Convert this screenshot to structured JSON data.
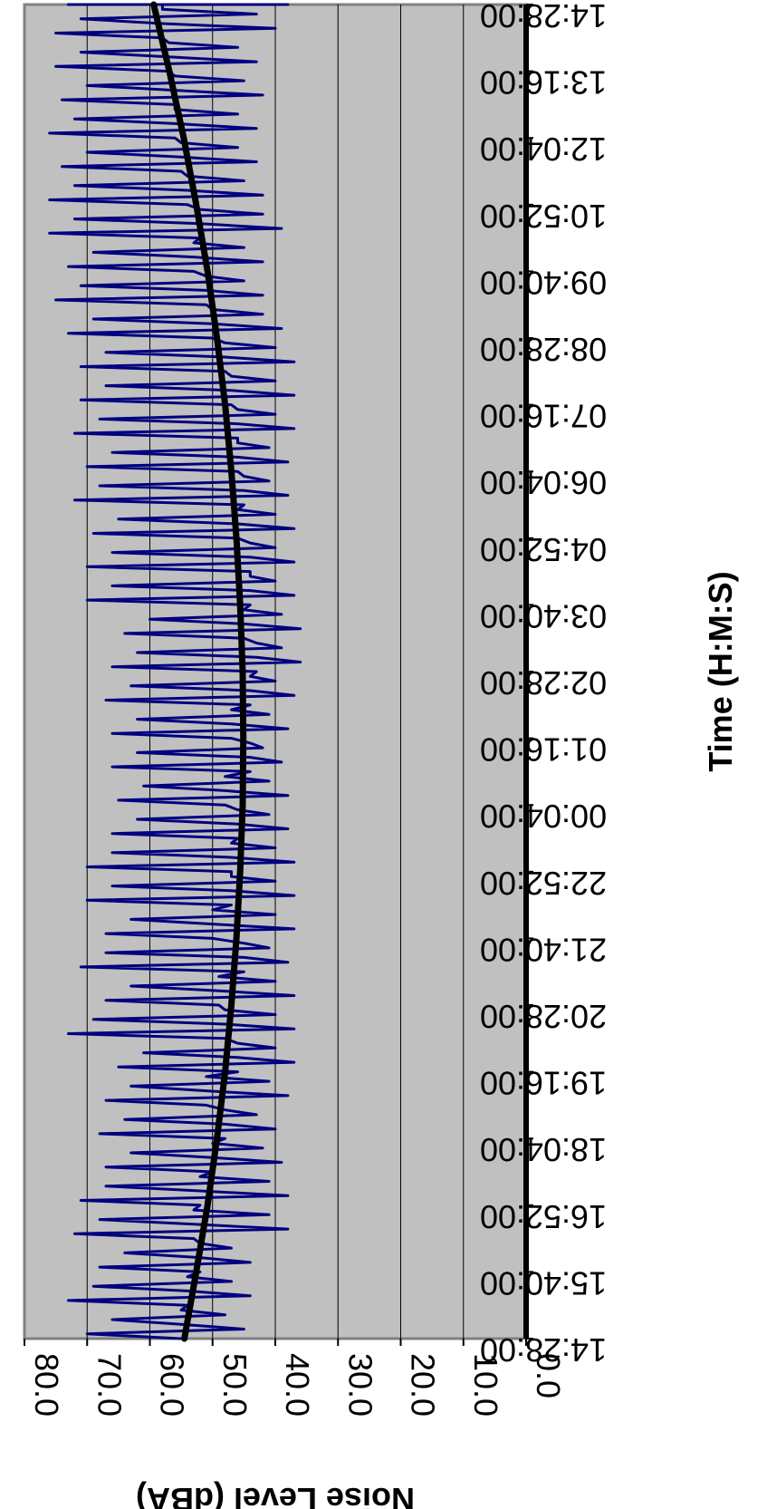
{
  "chart_data": {
    "type": "line",
    "orientation": "rotated-clockwise-90",
    "title": "",
    "xlabel": "Time (H:M:S)",
    "ylabel": "Noise Level (dBA)",
    "x_ticks": [
      "14:28:00",
      "15:40:00",
      "16:52:00",
      "18:04:00",
      "19:16:00",
      "20:28:00",
      "21:40:00",
      "22:52:00",
      "00:04:00",
      "01:16:00",
      "02:28:00",
      "03:40:00",
      "04:52:00",
      "06:04:00",
      "07:16:00",
      "08:28:00",
      "09:40:00",
      "10:52:00",
      "12:04:00",
      "13:16:00",
      "14:28:00"
    ],
    "y_ticks": [
      "0.0",
      "10.0",
      "20.0",
      "30.0",
      "40.0",
      "50.0",
      "60.0",
      "70.0",
      "80.0"
    ],
    "ylim": [
      0,
      80
    ],
    "grid": true,
    "legend": "none",
    "series": [
      {
        "kind": "measured",
        "color": "#000080",
        "x": [
          "14:28:00",
          "15:04:00",
          "15:40:00",
          "16:16:00",
          "16:52:00",
          "17:28:00",
          "18:04:00",
          "18:40:00",
          "19:16:00",
          "19:52:00",
          "20:28:00",
          "21:04:00",
          "21:40:00",
          "22:16:00",
          "22:52:00",
          "23:28:00",
          "00:04:00",
          "00:40:00",
          "01:16:00",
          "01:52:00",
          "02:28:00",
          "03:04:00",
          "03:40:00",
          "04:16:00",
          "04:52:00",
          "05:28:00",
          "06:04:00",
          "06:40:00",
          "07:16:00",
          "07:52:00",
          "08:28:00",
          "09:04:00",
          "09:40:00",
          "10:16:00",
          "10:52:00",
          "11:28:00",
          "12:04:00",
          "12:40:00",
          "13:16:00",
          "13:52:00",
          "14:28:00"
        ],
        "values": [
          55,
          54,
          52,
          53,
          52,
          50,
          48,
          51,
          46,
          48,
          49,
          45,
          50,
          47,
          47,
          46,
          48,
          44,
          47,
          44,
          43,
          45,
          44,
          44,
          46,
          45,
          46,
          46,
          47,
          48,
          50,
          51,
          53,
          52,
          54,
          55,
          56,
          56,
          57,
          58,
          58
        ],
        "min_values": [
          45,
          44,
          44,
          38,
          38,
          39,
          40,
          38,
          37,
          37,
          37,
          38,
          37,
          37,
          37,
          38,
          38,
          39,
          38,
          37,
          36,
          36,
          37,
          37,
          37,
          38,
          38,
          37,
          37,
          37,
          39,
          42,
          42,
          39,
          42,
          43,
          43,
          42,
          43,
          40,
          38
        ],
        "max_values": [
          70,
          73,
          68,
          72,
          71,
          67,
          68,
          67,
          65,
          73,
          67,
          71,
          67,
          70,
          70,
          66,
          65,
          66,
          66,
          67,
          66,
          64,
          70,
          70,
          69,
          72,
          70,
          72,
          71,
          71,
          73,
          75,
          73,
          76,
          76,
          74,
          76,
          74,
          75,
          75,
          73
        ]
      },
      {
        "kind": "trend",
        "color": "#000000",
        "x": [
          "14:28:00",
          "15:40:00",
          "16:52:00",
          "18:04:00",
          "19:16:00",
          "20:28:00",
          "21:40:00",
          "22:52:00",
          "00:04:00",
          "01:16:00",
          "02:28:00",
          "03:40:00",
          "04:52:00",
          "06:04:00",
          "07:16:00",
          "08:28:00",
          "09:40:00",
          "10:52:00",
          "12:04:00",
          "13:16:00",
          "14:28:00"
        ],
        "values": [
          54.5,
          52.6,
          50.8,
          49.3,
          48.0,
          47.0,
          46.2,
          45.6,
          45.2,
          45.1,
          45.2,
          45.6,
          46.2,
          47.0,
          48.0,
          49.3,
          50.8,
          52.6,
          54.6,
          56.9,
          59.4
        ]
      }
    ]
  }
}
